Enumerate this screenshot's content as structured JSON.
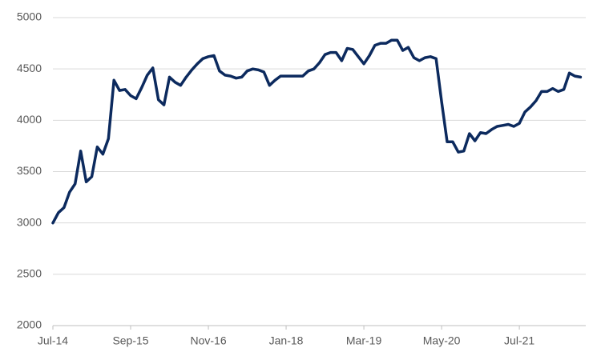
{
  "chart_data": {
    "type": "line",
    "categories": [
      "Jul-14",
      null,
      null,
      null,
      null,
      null,
      null,
      null,
      null,
      null,
      null,
      null,
      null,
      null,
      "Sep-15",
      null,
      null,
      null,
      null,
      null,
      null,
      null,
      null,
      null,
      null,
      null,
      null,
      null,
      "Nov-16",
      null,
      null,
      null,
      null,
      null,
      null,
      null,
      null,
      null,
      null,
      null,
      null,
      null,
      "Jan-18",
      null,
      null,
      null,
      null,
      null,
      null,
      null,
      null,
      null,
      null,
      null,
      null,
      null,
      "Mar-19",
      null,
      null,
      null,
      null,
      null,
      null,
      null,
      null,
      null,
      null,
      null,
      null,
      null,
      "May-20",
      null,
      null,
      null,
      null,
      null,
      null,
      null,
      null,
      null,
      null,
      null,
      null,
      null,
      "Jul-21",
      null,
      null,
      null,
      null,
      null,
      null,
      null,
      null,
      null,
      null,
      null
    ],
    "series": [
      {
        "color": "#0c2a5e",
        "values": [
          3000,
          3100,
          3150,
          3300,
          3380,
          3700,
          3400,
          3450,
          3740,
          3670,
          3820,
          4390,
          4290,
          4300,
          4240,
          4210,
          4320,
          4440,
          4510,
          4200,
          4150,
          4420,
          4370,
          4340,
          4420,
          4490,
          4550,
          4600,
          4620,
          4630,
          4480,
          4440,
          4430,
          4410,
          4420,
          4480,
          4500,
          4490,
          4470,
          4340,
          4390,
          4430,
          4430,
          4430,
          4430,
          4430,
          4480,
          4500,
          4560,
          4640,
          4660,
          4660,
          4580,
          4700,
          4690,
          4620,
          4550,
          4630,
          4730,
          4750,
          4750,
          4780,
          4780,
          4680,
          4710,
          4610,
          4580,
          4610,
          4620,
          4600,
          4180,
          3790,
          3790,
          3690,
          3700,
          3870,
          3800,
          3880,
          3870,
          3910,
          3940,
          3950,
          3960,
          3940,
          3970,
          4080,
          4130,
          4190,
          4280,
          4280,
          4310,
          4280,
          4300,
          4460,
          4430,
          4420
        ]
      }
    ],
    "ylim": [
      2000,
      5000
    ],
    "yticks": [
      2000,
      2500,
      3000,
      3500,
      4000,
      4500,
      5000
    ],
    "grid": true
  }
}
